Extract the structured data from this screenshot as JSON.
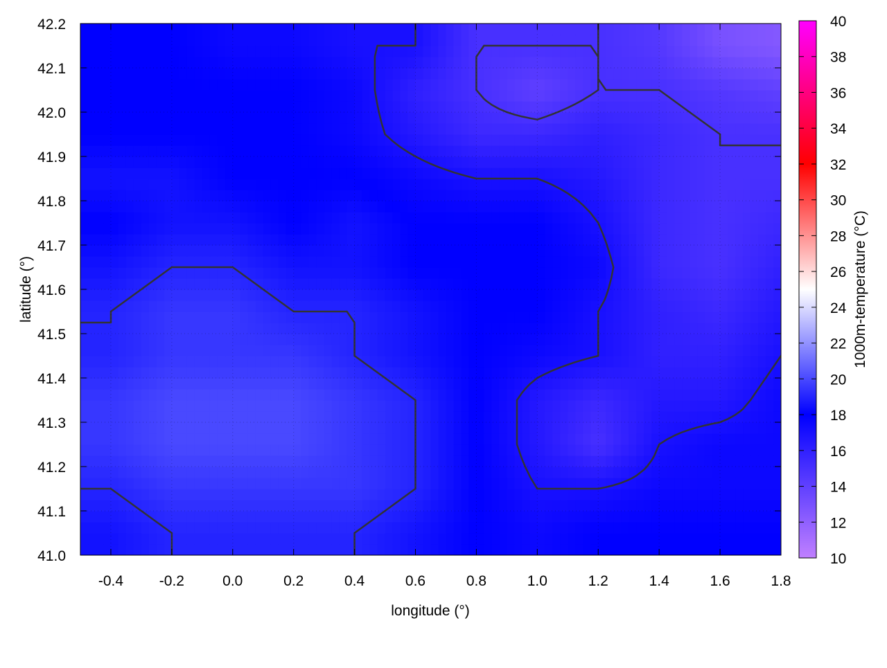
{
  "chart_data": {
    "type": "heatmap",
    "title": "",
    "xlabel": "longitude (°)",
    "ylabel": "latitude (°)",
    "colorbar_label": "1000m-temperature (°C)",
    "xlim": [
      -0.5,
      1.8
    ],
    "ylim": [
      41.0,
      42.2
    ],
    "x_ticks": [
      "-0.4",
      "-0.2",
      "0.0",
      "0.2",
      "0.4",
      "0.6",
      "0.8",
      "1.0",
      "1.2",
      "1.4",
      "1.6",
      "1.8"
    ],
    "y_ticks": [
      "41.0",
      "41.1",
      "41.2",
      "41.3",
      "41.4",
      "41.5",
      "41.6",
      "41.7",
      "41.8",
      "41.9",
      "42.0",
      "42.1",
      "42.2"
    ],
    "colorbar_ticks": [
      "10",
      "12",
      "14",
      "16",
      "18",
      "20",
      "22",
      "24",
      "26",
      "28",
      "30",
      "32",
      "34",
      "36",
      "38",
      "40"
    ],
    "clim": [
      10,
      40
    ],
    "colormap": [
      {
        "value": 10,
        "color": "#c080ff"
      },
      {
        "value": 18,
        "color": "#0000ff"
      },
      {
        "value": 25,
        "color": "#ffffff"
      },
      {
        "value": 32,
        "color": "#ff0000"
      },
      {
        "value": 40,
        "color": "#ff00ff"
      }
    ],
    "grid": true,
    "contour_color": "#333333",
    "contour_levels": [
      15,
      17,
      19
    ],
    "lon": [
      -0.4,
      -0.2,
      0.0,
      0.2,
      0.4,
      0.6,
      0.8,
      1.0,
      1.2,
      1.4,
      1.6,
      1.8
    ],
    "lat": [
      42.15,
      42.05,
      41.95,
      41.85,
      41.75,
      41.65,
      41.55,
      41.45,
      41.35,
      41.25,
      41.15,
      41.05
    ],
    "values": [
      [
        18,
        18,
        17.5,
        17.5,
        17,
        17,
        15,
        15,
        15,
        14.5,
        13,
        12.5
      ],
      [
        18,
        18,
        18,
        18,
        17.5,
        16,
        15,
        14,
        15,
        15,
        14.5,
        14
      ],
      [
        18,
        18,
        18,
        18,
        17.5,
        16.5,
        15.5,
        15.5,
        16,
        15.5,
        15,
        15
      ],
      [
        18.5,
        18.5,
        18,
        18,
        18,
        17.5,
        17,
        17,
        16.5,
        15.5,
        15,
        15
      ],
      [
        18,
        18.5,
        18.5,
        18,
        18.5,
        18,
        18,
        18,
        17,
        15.5,
        15,
        15.5
      ],
      [
        18.5,
        19,
        19,
        18.5,
        18.5,
        18,
        18,
        18,
        17.5,
        15.5,
        15,
        16
      ],
      [
        19,
        19.5,
        19.5,
        19,
        19,
        18.5,
        18,
        18,
        17,
        16,
        15.5,
        16.5
      ],
      [
        19,
        19.5,
        19.5,
        19.5,
        19,
        18.5,
        18,
        17.5,
        17,
        16,
        16,
        17
      ],
      [
        19.5,
        20,
        20,
        20,
        19.5,
        19,
        18,
        16.5,
        15.5,
        16.5,
        16.5,
        17.5
      ],
      [
        19.5,
        20,
        20,
        20,
        19.5,
        19,
        18,
        16.5,
        15,
        17,
        17.5,
        17.5
      ],
      [
        19,
        19.5,
        19.5,
        19.5,
        19.5,
        19,
        18,
        17,
        17,
        17.5,
        17.5,
        17.5
      ],
      [
        18.5,
        19,
        19,
        19,
        19,
        18.5,
        18,
        17.5,
        18,
        18,
        18,
        18
      ]
    ]
  }
}
